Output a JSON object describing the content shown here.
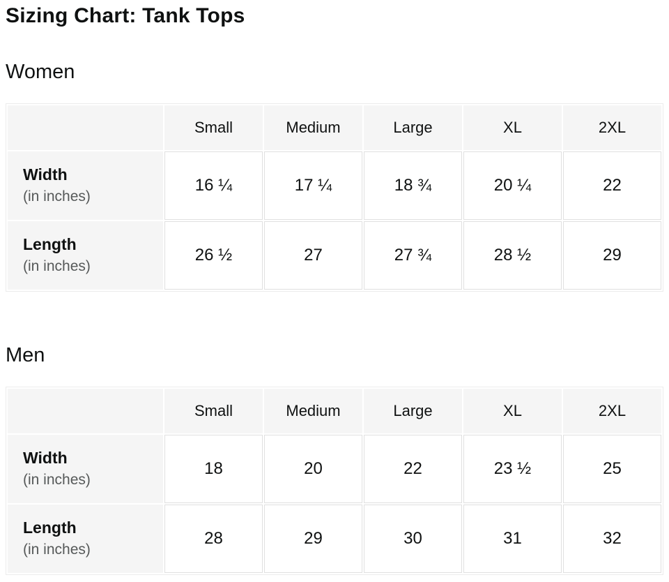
{
  "page": {
    "title": "Sizing Chart: Tank Tops"
  },
  "colors": {
    "background": "#ffffff",
    "header_cell_bg": "#f5f5f5",
    "cell_border": "#e0e0e0",
    "text": "#0f1111",
    "muted_text": "#565959"
  },
  "tables": [
    {
      "section": "Women",
      "columns": [
        "Small",
        "Medium",
        "Large",
        "XL",
        "2XL"
      ],
      "rows": [
        {
          "label": "Width",
          "sublabel": "(in inches)",
          "values": [
            "16 ¼",
            "17 ¼",
            "18 ¾",
            "20 ¼",
            "22"
          ]
        },
        {
          "label": "Length",
          "sublabel": "(in inches)",
          "values": [
            "26 ½",
            "27",
            "27 ¾",
            "28 ½",
            "29"
          ]
        }
      ]
    },
    {
      "section": "Men",
      "columns": [
        "Small",
        "Medium",
        "Large",
        "XL",
        "2XL"
      ],
      "rows": [
        {
          "label": "Width",
          "sublabel": "(in inches)",
          "values": [
            "18",
            "20",
            "22",
            "23 ½",
            "25"
          ]
        },
        {
          "label": "Length",
          "sublabel": "(in inches)",
          "values": [
            "28",
            "29",
            "30",
            "31",
            "32"
          ]
        }
      ]
    }
  ]
}
